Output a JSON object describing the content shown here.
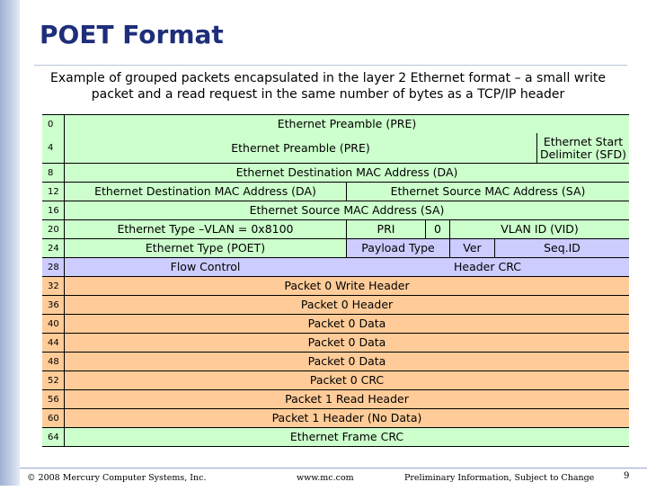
{
  "title": "POET Format",
  "subtitle": "Example of grouped packets encapsulated in the layer 2 Ethernet format – a small write packet and a read request in the same number of bytes as a TCP/IP header",
  "rows": [
    {
      "offset": "0",
      "cells": [
        "Ethernet Preamble (PRE)"
      ]
    },
    {
      "offset": "4",
      "cells": [
        "Ethernet Preamble (PRE)",
        "Ethernet Start Delimiter (SFD)"
      ]
    },
    {
      "offset": "8",
      "cells": [
        "Ethernet Destination MAC Address (DA)"
      ]
    },
    {
      "offset": "12",
      "cells": [
        "Ethernet Destination MAC Address (DA)",
        "Ethernet Source MAC Address (SA)"
      ]
    },
    {
      "offset": "16",
      "cells": [
        "Ethernet Source MAC Address (SA)"
      ]
    },
    {
      "offset": "20",
      "cells": [
        "Ethernet Type –VLAN = 0x8100",
        "PRI",
        "0",
        "VLAN ID (VID)"
      ]
    },
    {
      "offset": "24",
      "cells": [
        "Ethernet Type (POET)",
        "Payload Type",
        "Ver",
        "Seq.ID"
      ]
    },
    {
      "offset": "28",
      "cells": [
        "Flow Control",
        "Header CRC"
      ]
    },
    {
      "offset": "32",
      "cells": [
        "Packet 0 Write Header"
      ]
    },
    {
      "offset": "36",
      "cells": [
        "Packet 0 Header"
      ]
    },
    {
      "offset": "40",
      "cells": [
        "Packet 0 Data"
      ]
    },
    {
      "offset": "44",
      "cells": [
        "Packet 0 Data"
      ]
    },
    {
      "offset": "48",
      "cells": [
        "Packet 0 Data"
      ]
    },
    {
      "offset": "52",
      "cells": [
        "Packet 0 CRC"
      ]
    },
    {
      "offset": "56",
      "cells": [
        "Packet 1 Read Header"
      ]
    },
    {
      "offset": "60",
      "cells": [
        "Packet 1 Header (No Data)"
      ]
    },
    {
      "offset": "64",
      "cells": [
        "Ethernet Frame CRC"
      ]
    }
  ],
  "colors": {
    "ethernet_fields": "#ccffcc",
    "poet_header_fields": "#ccccff",
    "packet_fields": "#ffcc99",
    "title_color": "#1e2e7a"
  },
  "footer": {
    "copyright": "© 2008 Mercury Computer Systems, Inc.",
    "url": "www.mc.com",
    "notice": "Preliminary Information, Subject to Change",
    "page": "9"
  }
}
